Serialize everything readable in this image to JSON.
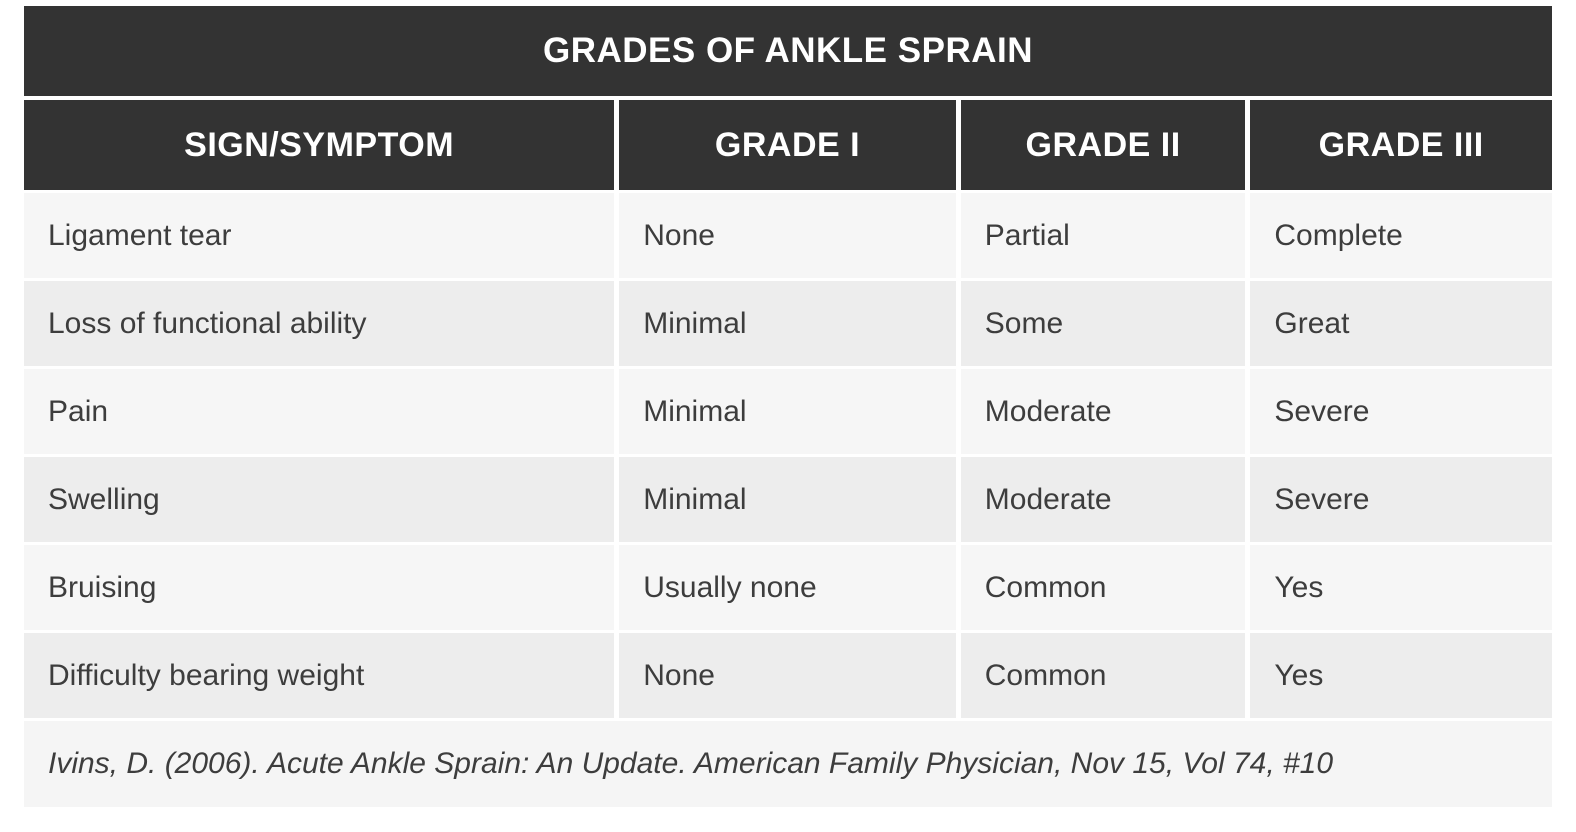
{
  "chart_data": {
    "type": "table",
    "title": "GRADES OF ANKLE SPRAIN",
    "columns": [
      "SIGN/SYMPTOM",
      "GRADE I",
      "GRADE II",
      "GRADE III"
    ],
    "rows": [
      [
        "Ligament tear",
        "None",
        "Partial",
        "Complete"
      ],
      [
        "Loss of functional ability",
        "Minimal",
        "Some",
        "Great"
      ],
      [
        "Pain",
        "Minimal",
        "Moderate",
        "Severe"
      ],
      [
        "Swelling",
        "Minimal",
        "Moderate",
        "Severe"
      ],
      [
        "Bruising",
        "Usually none",
        "Common",
        "Yes"
      ],
      [
        "Difficulty bearing weight",
        "None",
        "Common",
        "Yes"
      ]
    ],
    "citation": "Ivins, D. (2006). Acute Ankle Sprain: An Update. American Family Physician, Nov 15, Vol 74, #10",
    "layout_hints": {
      "header_style": "dark bar, white bold uppercase text",
      "row_striping": "alternating light/dark gray",
      "grid": "white gutters between cells"
    }
  },
  "colors": {
    "header_bg": "#333333",
    "header_text": "#ffffff",
    "row_light_bg": "#f6f6f6",
    "row_dark_bg": "#ededed",
    "footer_bg": "#f5f5f5",
    "body_text": "#3d3d3d",
    "page_bg": "#ffffff"
  }
}
